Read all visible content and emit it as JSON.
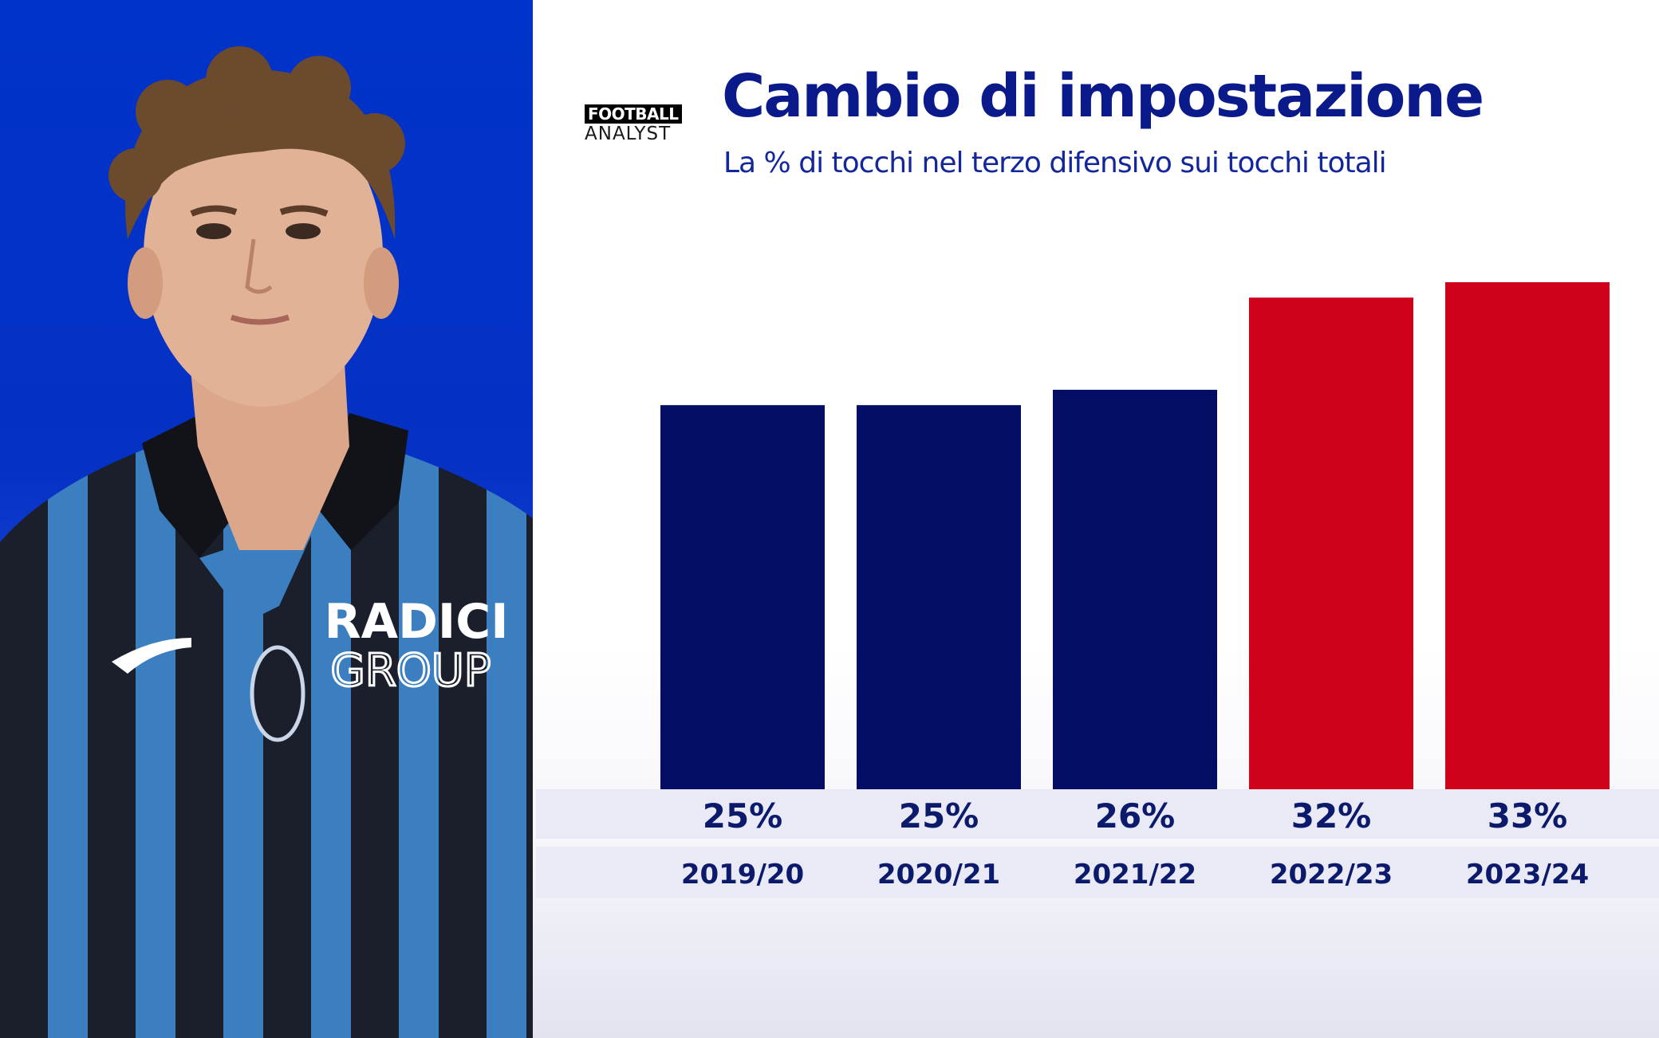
{
  "logo": {
    "line1": "FOOTBALL",
    "line2": "ANALYST"
  },
  "title": "Cambio di impostazione",
  "subtitle": "La % di tocchi nel terzo difensivo sui tocchi totali",
  "colors": {
    "navy": "#020d63",
    "red": "#d0021b",
    "title": "#0a1a8a",
    "photo_bg": "#0033c9"
  },
  "photo": {
    "icon": "player-portrait",
    "sponsor_line1": "RADICI",
    "sponsor_line2": "GROUP"
  },
  "chart_data": {
    "type": "bar",
    "title": "Cambio di impostazione",
    "subtitle": "La % di tocchi nel terzo difensivo sui tocchi totali",
    "categories": [
      "2019/20",
      "2020/21",
      "2021/22",
      "2022/23",
      "2023/24"
    ],
    "values": [
      25,
      25,
      26,
      32,
      33
    ],
    "value_labels": [
      "25%",
      "25%",
      "26%",
      "32%",
      "33%"
    ],
    "bar_colors": [
      "#020d63",
      "#020d63",
      "#020d63",
      "#d0021b",
      "#d0021b"
    ],
    "unit": "%",
    "ylim": [
      0,
      33
    ],
    "grid": false,
    "legend": "none"
  }
}
